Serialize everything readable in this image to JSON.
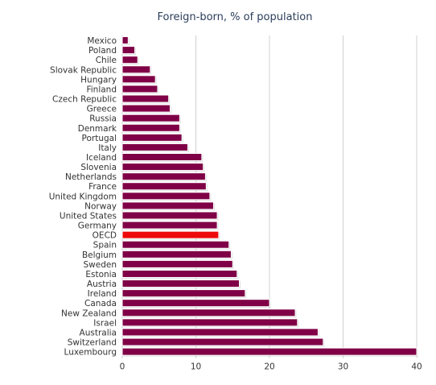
{
  "chart_data": {
    "type": "bar",
    "orientation": "horizontal",
    "title": "Foreign-born, % of population",
    "xlabel": "",
    "ylabel": "",
    "xlim": [
      0,
      40
    ],
    "ticks": [
      0,
      10,
      20,
      30,
      40
    ],
    "grid": true,
    "legend": "none",
    "categories": [
      "Mexico",
      "Poland",
      "Chile",
      "Slovak Republic",
      "Hungary",
      "Finland",
      "Czech Republic",
      "Greece",
      "Russia",
      "Denmark",
      "Portugal",
      "Italy",
      "Iceland",
      "Slovenia",
      "Netherlands",
      "France",
      "United Kingdom",
      "Norway",
      "United States",
      "Germany",
      "OECD",
      "Spain",
      "Belgium",
      "Sweden",
      "Estonia",
      "Austria",
      "Ireland",
      "Canada",
      "New Zealand",
      "Israel",
      "Australia",
      "Switzerland",
      "Luxembourg"
    ],
    "values": [
      0.8,
      1.7,
      2.1,
      3.8,
      4.5,
      4.8,
      6.3,
      6.5,
      7.8,
      7.8,
      8.1,
      8.9,
      10.8,
      11.0,
      11.3,
      11.4,
      11.9,
      12.4,
      12.9,
      12.9,
      13.1,
      14.5,
      14.8,
      15.0,
      15.6,
      15.9,
      16.7,
      20.0,
      23.5,
      23.8,
      26.6,
      27.3,
      40.0
    ],
    "highlight": "OECD",
    "colors": {
      "bar": "#7f0046",
      "highlight": "#ee0a0a",
      "grid": "#d0d0d0",
      "axis": "#c0c0c0"
    }
  }
}
